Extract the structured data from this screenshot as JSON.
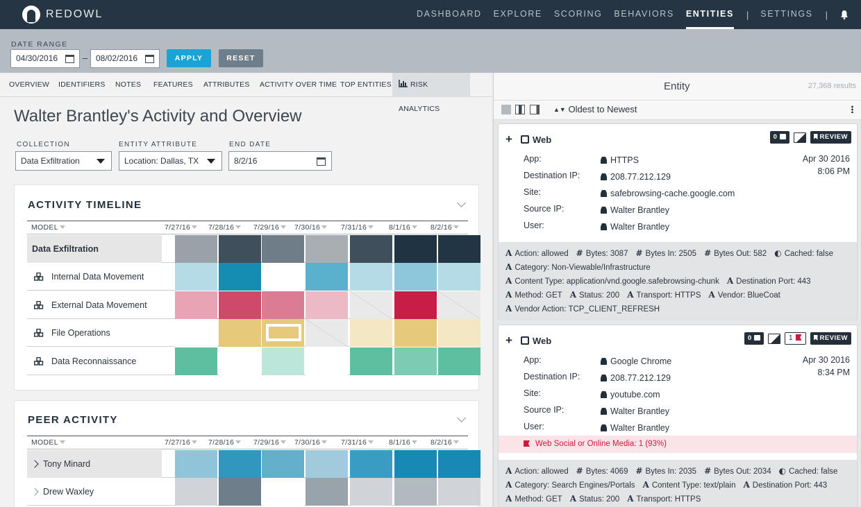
{
  "brand": {
    "name": "REDOWL"
  },
  "nav": {
    "items": [
      "DASHBOARD",
      "EXPLORE",
      "SCORING",
      "BEHAVIORS",
      "ENTITIES",
      "SETTINGS"
    ],
    "separator": "|"
  },
  "filters": {
    "date_range_label": "DATE RANGE",
    "start": "04/30/2016",
    "end": "08/02/2016",
    "separator": "–",
    "apply_label": "APPLY",
    "reset_label": "RESET"
  },
  "tabs": [
    "OVERVIEW",
    "IDENTIFIERS",
    "NOTES",
    "FEATURES",
    "ATTRIBUTES",
    "ACTIVITY OVER TIME",
    "TOP ENTITIES",
    "RISK ANALYTICS"
  ],
  "page": {
    "title": "Walter Brantley's Activity and Overview"
  },
  "controls": {
    "collection_label": "COLLECTION",
    "collection_value": "Data Exfiltration",
    "entity_attribute_label": "ENTITY ATTRIBUTE",
    "entity_attribute_value": "Location: Dallas, TX",
    "end_date_label": "END DATE",
    "end_date_value": "8/2/16"
  },
  "timeline": {
    "title": "ACTIVITY TIMELINE",
    "model_header": "MODEL",
    "dates": [
      "7/27/16",
      "7/28/16",
      "7/29/16",
      "7/30/16",
      "7/31/16",
      "8/1/16",
      "8/2/16"
    ],
    "rows": [
      {
        "label": "Data Exfiltration",
        "colors": [
          "#9aa1a8",
          "#3f4f5c",
          "#6e7d88",
          "#a9aeb2",
          "#3f4f5c",
          "#1f3342",
          "#223544"
        ]
      },
      {
        "label": "Internal Data Movement",
        "colors": [
          "#b5dbe7",
          "#158db3",
          "#ffffff",
          "#5ab1cd",
          "#b5dbe7",
          "#8ec6dc",
          "#b5dbe7"
        ]
      },
      {
        "label": "External Data Movement",
        "colors": [
          "#e8a4b4",
          "#cf4a6a",
          "#dc7c92",
          "#ebbac6",
          "diag",
          "#c71d46",
          "diag"
        ]
      },
      {
        "label": "File Operations",
        "colors": [
          "#ffffff",
          "#e6c97a",
          "selected",
          "diag",
          "#f4e7c4",
          "#e6c97a",
          "#f4e7c4"
        ]
      },
      {
        "label": "Data Reconnaissance",
        "colors": [
          "#5dbf9f",
          "#ffffff",
          "#bde6da",
          "#ffffff",
          "#5dbf9f",
          "#7ccbb2",
          "#5dbf9f"
        ]
      }
    ]
  },
  "peer": {
    "title": "PEER ACTIVITY",
    "model_header": "MODEL",
    "dates": [
      "7/27/16",
      "7/28/16",
      "7/29/16",
      "7/30/16",
      "7/31/16",
      "8/1/16",
      "8/2/16"
    ],
    "rows": [
      {
        "label": "Tony Minard",
        "colors": [
          "#8fc4d9",
          "#3297bf",
          "#63b0cc",
          "#9fcbdc",
          "#3a9cc3",
          "#1789b4",
          "#1789b4"
        ]
      },
      {
        "label": "Drew Waxley",
        "colors": [
          "#d0d4d8",
          "#6e7e8a",
          "#ffffff",
          "#98a3ac",
          "#d0d4d8",
          "#b2bac1",
          "#d0d4d8"
        ]
      }
    ]
  },
  "entity_panel": {
    "title": "Entity",
    "count": "27,368 results",
    "sort_label": "Oldest to Newest",
    "cards": [
      {
        "type": "Web",
        "comments": "0",
        "review": "REVIEW",
        "flag_count": "",
        "fields": [
          {
            "k": "App:",
            "v": "HTTPS"
          },
          {
            "k": "Destination IP:",
            "v": "208.77.212.129"
          },
          {
            "k": "Site:",
            "v": "safebrowsing-cache.google.com"
          },
          {
            "k": "Source IP:",
            "v": "Walter Brantley"
          },
          {
            "k": "User:",
            "v": "Walter Brantley"
          }
        ],
        "date": "Apr 30 2016",
        "time": "8:06 PM",
        "alert": "",
        "attrs": [
          "Action: allowed",
          "Bytes: 3087",
          "Bytes In: 2505",
          "Bytes Out: 582",
          "Cached: false",
          "Category: Non-Viewable/Infrastructure",
          "Content Type: application/vnd.google.safebrowsing-chunk",
          "Destination Port: 443",
          "Method: GET",
          "Status: 200",
          "Transport: HTTPS",
          "Vendor: BlueCoat",
          "Vendor Action: TCP_CLIENT_REFRESH"
        ]
      },
      {
        "type": "Web",
        "comments": "0",
        "review": "REVIEW",
        "flag_count": "1",
        "fields": [
          {
            "k": "App:",
            "v": "Google Chrome"
          },
          {
            "k": "Destination IP:",
            "v": "208.77.212.129"
          },
          {
            "k": "Site:",
            "v": "youtube.com"
          },
          {
            "k": "Source IP:",
            "v": "Walter Brantley"
          },
          {
            "k": "User:",
            "v": "Walter Brantley"
          }
        ],
        "date": "Apr 30 2016",
        "time": "8:34 PM",
        "alert": "Web Social or Online Media: 1 (93%)",
        "attrs": [
          "Action: allowed",
          "Bytes: 4069",
          "Bytes In: 2035",
          "Bytes Out: 2034",
          "Cached: false",
          "Category: Search Engines/Portals",
          "Content Type: text/plain",
          "Destination Port: 443",
          "Method: GET",
          "Status: 200",
          "Transport: HTTPS"
        ]
      }
    ]
  }
}
